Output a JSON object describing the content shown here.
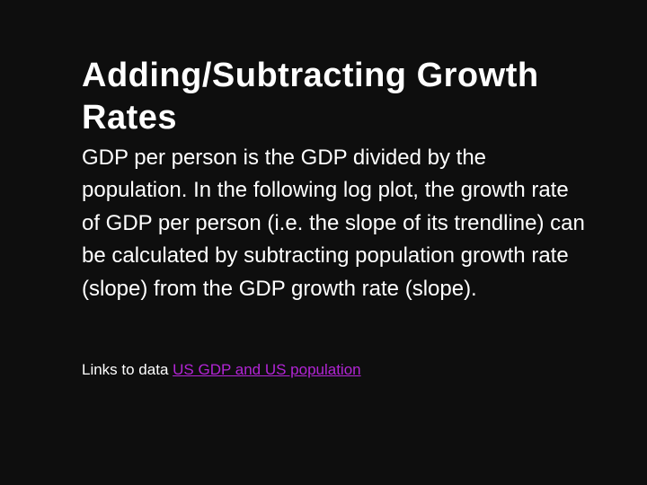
{
  "slide": {
    "title": "Adding/Subtracting Growth Rates",
    "body": "GDP per person is the GDP divided by the population. In the following log plot, the growth rate of GDP per person (i.e. the slope of its trendline) can be calculated by subtracting population growth rate (slope) from the GDP growth rate (slope).",
    "links_label": "Links to data",
    "link_text": "US GDP and US population"
  },
  "colors": {
    "background": "#0e0e0e",
    "text": "#ffffff",
    "link": "#b325d6"
  }
}
